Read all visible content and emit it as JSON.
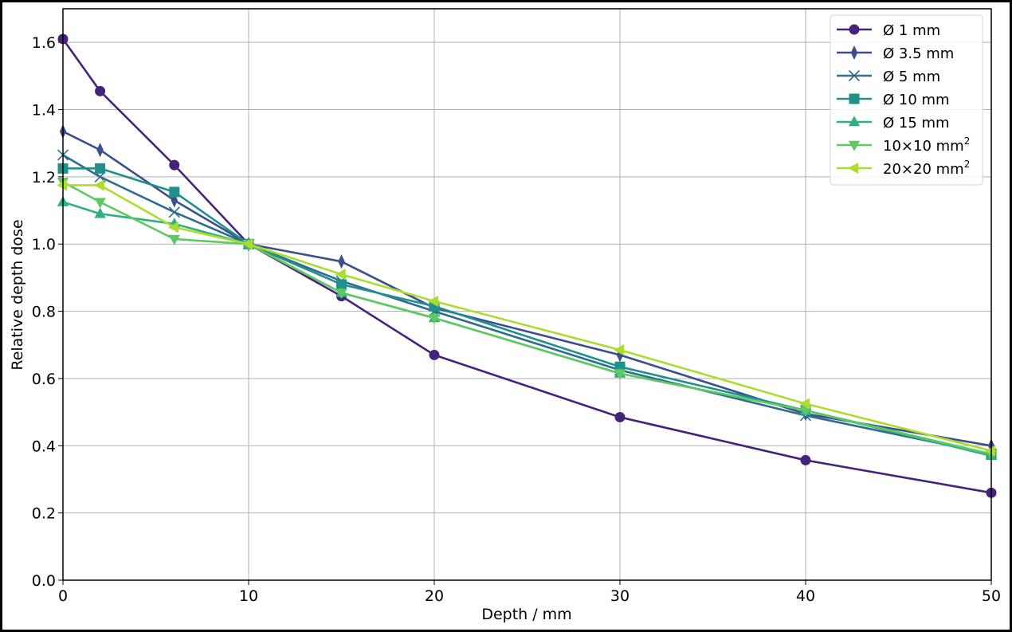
{
  "chart_data": {
    "type": "line",
    "title": "",
    "xlabel": "Depth / mm",
    "ylabel": "Relative depth dose",
    "xlim": [
      0,
      50
    ],
    "ylim": [
      0.0,
      1.7
    ],
    "xticks": [
      "0",
      "10",
      "20",
      "30",
      "40",
      "50"
    ],
    "yticks": [
      "0.0",
      "0.2",
      "0.4",
      "0.6",
      "0.8",
      "1.0",
      "1.2",
      "1.4",
      "1.6"
    ],
    "grid": true,
    "legend_position": "upper right",
    "x": [
      0,
      2,
      6,
      10,
      15,
      20,
      30,
      40,
      50
    ],
    "series": [
      {
        "name": "Ø 1 mm",
        "marker": "circle",
        "color": "#45237a",
        "values": [
          1.61,
          1.455,
          1.235,
          1.0,
          0.845,
          0.67,
          0.485,
          0.357,
          0.26
        ]
      },
      {
        "name": "Ø 3.5 mm",
        "marker": "thin-diamond",
        "color": "#3b4f8c",
        "values": [
          1.335,
          1.28,
          1.13,
          1.0,
          0.948,
          0.81,
          0.67,
          0.495,
          0.4
        ]
      },
      {
        "name": "Ø 5 mm",
        "marker": "x",
        "color": "#2f6c8e",
        "values": [
          1.265,
          1.2,
          1.095,
          1.0,
          0.89,
          0.8,
          0.625,
          0.49,
          0.375
        ]
      },
      {
        "name": "Ø 10 mm",
        "marker": "square",
        "color": "#21908d",
        "values": [
          1.225,
          1.225,
          1.155,
          1.0,
          0.88,
          0.815,
          0.635,
          0.505,
          0.375
        ]
      },
      {
        "name": "Ø 15 mm",
        "marker": "triangle-up",
        "color": "#2db27d",
        "values": [
          1.125,
          1.09,
          1.06,
          1.0,
          0.855,
          0.78,
          0.615,
          0.505,
          0.37
        ]
      },
      {
        "name": "10×10 mm²",
        "marker": "triangle-down",
        "color": "#5ec962",
        "values": [
          1.185,
          1.125,
          1.015,
          1.0,
          0.855,
          0.78,
          0.615,
          0.505,
          0.375
        ]
      },
      {
        "name": "20×20 mm²",
        "marker": "triangle-left",
        "color": "#addc30",
        "values": [
          1.175,
          1.175,
          1.05,
          1.0,
          0.91,
          0.83,
          0.685,
          0.525,
          0.385
        ]
      }
    ]
  },
  "legend": {
    "items": [
      {
        "label": "Ø 1 mm"
      },
      {
        "label": "Ø 3.5 mm"
      },
      {
        "label": "Ø 5 mm"
      },
      {
        "label": "Ø 10 mm"
      },
      {
        "label": "Ø 15 mm"
      },
      {
        "label": "10×10 mm",
        "sup": "2"
      },
      {
        "label": "20×20 mm",
        "sup": "2"
      }
    ]
  },
  "axes": {
    "xlabel": "Depth / mm",
    "ylabel": "Relative depth dose"
  }
}
